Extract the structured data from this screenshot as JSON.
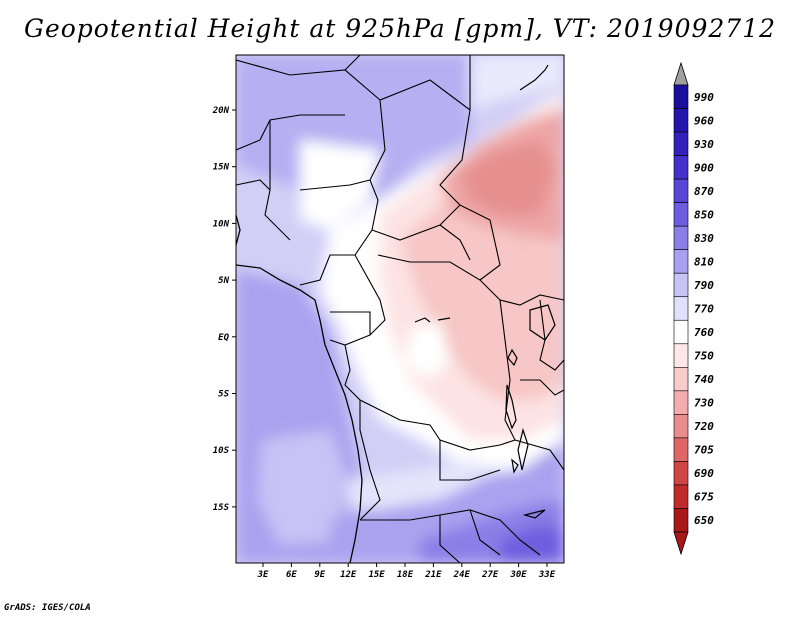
{
  "title": "Geopotential Height at 925hPa [gpm], VT: 2019092712",
  "credit": "GrADS: IGES/COLA",
  "map": {
    "lon_labels": [
      "3E",
      "6E",
      "9E",
      "12E",
      "15E",
      "18E",
      "21E",
      "24E",
      "27E",
      "30E",
      "33E"
    ],
    "lat_labels": [
      "20N",
      "15N",
      "10N",
      "5N",
      "EQ",
      "5S",
      "10S",
      "15S"
    ]
  },
  "colorbar": {
    "labels": [
      "990",
      "960",
      "930",
      "900",
      "870",
      "850",
      "830",
      "810",
      "790",
      "770",
      "760",
      "750",
      "740",
      "730",
      "720",
      "705",
      "690",
      "675",
      "650"
    ],
    "colors": [
      "#1a0f9c",
      "#2416ad",
      "#3221bd",
      "#4430cb",
      "#5a46d6",
      "#6f5ddf",
      "#8c7ee7",
      "#aaa0ef",
      "#c8c3f5",
      "#e2e0fa",
      "#ffffff",
      "#fde7e7",
      "#f9cccc",
      "#f2aeae",
      "#ea8d8d",
      "#e06767",
      "#d04646",
      "#c02c2c",
      "#a81818"
    ],
    "top_arrow_color": "#a0a0a0",
    "bottom_arrow_color": "#a81818"
  }
}
